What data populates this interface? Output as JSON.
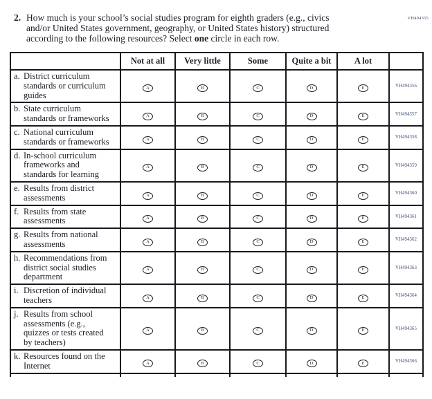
{
  "page": {
    "form_code": "VH494355",
    "code_color": "#3d4a78"
  },
  "question": {
    "number": "2.",
    "line1": "How much is your school’s social studies program for eighth graders (e.g., civics",
    "line2": "and/or United States government, geography, or United States history) structured",
    "line3_before": "according to the following resources? Select ",
    "line3_bold": "one",
    "line3_after": " circle in each row."
  },
  "table": {
    "headers": [
      "",
      "Not at all",
      "Very little",
      "Some",
      "Quite a bit",
      "A lot",
      ""
    ],
    "options": [
      "A",
      "B",
      "C",
      "D",
      "E"
    ],
    "rows": [
      {
        "letter": "a.",
        "label": "District curriculum standards or curriculum guides",
        "code": "VH494356"
      },
      {
        "letter": "b.",
        "label": "State curriculum standards or frameworks",
        "code": "VH494357"
      },
      {
        "letter": "c.",
        "label": "National curriculum standards or frameworks",
        "code": "VH494358"
      },
      {
        "letter": "d.",
        "label": "In-school curriculum frameworks and standards for learning",
        "code": "VH494359"
      },
      {
        "letter": "e.",
        "label": "Results from district assessments",
        "code": "VH494360"
      },
      {
        "letter": "f.",
        "label": "Results from state assessments",
        "code": "VH494361"
      },
      {
        "letter": "g.",
        "label": "Results from national assessments",
        "code": "VH494362"
      },
      {
        "letter": "h.",
        "label": "Recommendations from district social studies department",
        "code": "VH494363"
      },
      {
        "letter": "i.",
        "label": "Discretion of individual teachers",
        "code": "VH494364"
      },
      {
        "letter": "j.",
        "label": "Results from school assessments (e.g., quizzes or tests created by teachers)",
        "code": "VH494365"
      },
      {
        "letter": "k.",
        "label": "Resources found on the Internet",
        "code": "VH494366"
      }
    ]
  }
}
